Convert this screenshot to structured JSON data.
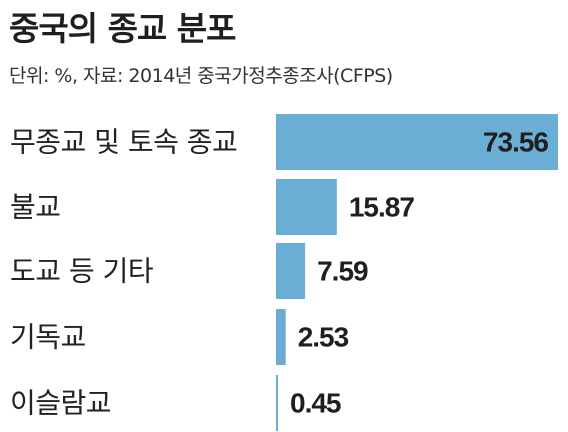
{
  "title": "중국의 종교 분포",
  "subtitle": "단위: %, 자료: 2014년 중국가정추종조사(CFPS)",
  "colors": {
    "bar": "#6aaed6",
    "bar_max": "#6aaed6",
    "value_text": "#1f1f1f",
    "value_text_inside": "#1f1f1f"
  },
  "chart_data": {
    "type": "bar",
    "orientation": "horizontal",
    "categories": [
      "무종교 및 토속 종교",
      "불교",
      "도교 등 기타",
      "기독교",
      "이슬람교"
    ],
    "values": [
      73.56,
      15.87,
      7.59,
      2.53,
      0.45
    ],
    "value_labels": [
      "73.56",
      "15.87",
      "7.59",
      "2.53",
      "0.45"
    ],
    "unit": "%",
    "xlim": [
      0,
      73.56
    ],
    "grid": false,
    "legend": "none"
  }
}
